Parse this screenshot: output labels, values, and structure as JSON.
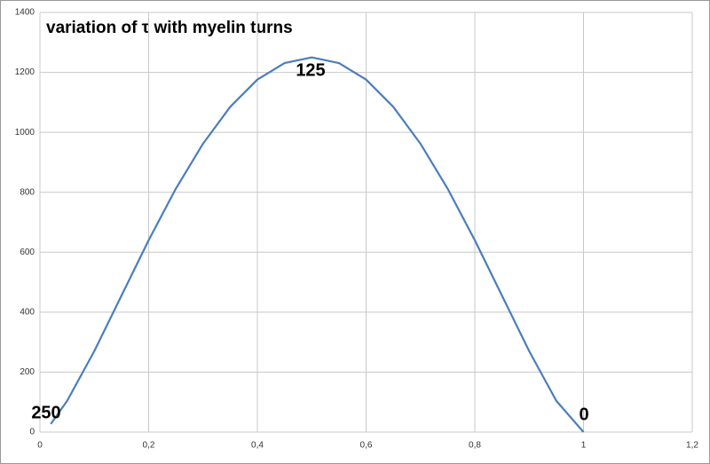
{
  "chart_data": {
    "type": "line",
    "title": "variation of τ with myelin turns",
    "x": [
      0.02,
      0.05,
      0.1,
      0.15,
      0.2,
      0.25,
      0.3,
      0.35,
      0.4,
      0.45,
      0.5,
      0.55,
      0.6,
      0.65,
      0.7,
      0.75,
      0.8,
      0.85,
      0.9,
      0.95,
      1.0
    ],
    "series": [
      {
        "color": "#4a7ebb",
        "values": [
          27,
          104,
          270,
          455,
          640,
          812,
          962,
          1085,
          1176,
          1231,
          1250,
          1231,
          1176,
          1085,
          962,
          812,
          640,
          455,
          270,
          104,
          0
        ]
      }
    ],
    "annotations": [
      "250",
      "125",
      "0"
    ],
    "xlim": [
      0,
      1.2
    ],
    "xticks": [
      0,
      {
        "value": 0.2,
        "label": "0,2"
      },
      {
        "value": 0.4,
        "label": "0,4"
      },
      {
        "value": 0.6,
        "label": "0,6"
      },
      {
        "value": 0.8,
        "label": "0,8"
      },
      1,
      {
        "value": 1.2,
        "label": "1,2"
      }
    ],
    "ylim": [
      0,
      1400
    ],
    "yticks": [
      0,
      200,
      400,
      600,
      800,
      1000,
      1200,
      1400
    ],
    "grid": true
  }
}
